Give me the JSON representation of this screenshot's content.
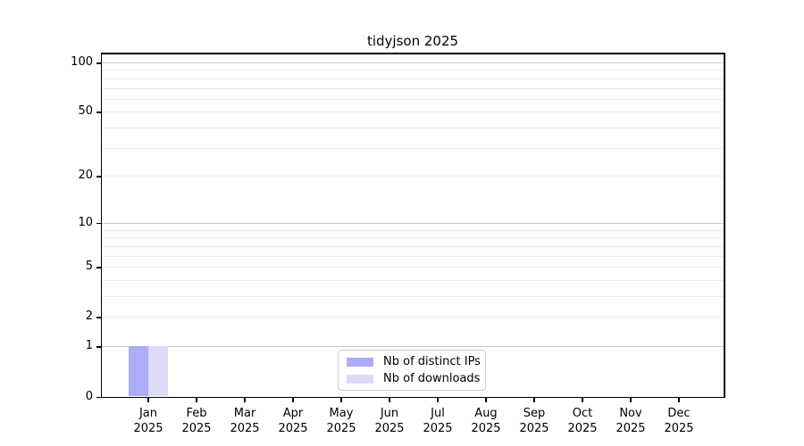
{
  "title": "tidyjson 2025",
  "legend": {
    "items": [
      {
        "label": "Nb of distinct IPs",
        "color": "#acacf7"
      },
      {
        "label": "Nb of downloads",
        "color": "#dcdcf6"
      }
    ],
    "position": "lower center"
  },
  "chart_data": {
    "type": "bar",
    "title": "tidyjson 2025",
    "categories": [
      "Jan",
      "Feb",
      "Mar",
      "Apr",
      "May",
      "Jun",
      "Jul",
      "Aug",
      "Sep",
      "Oct",
      "Nov",
      "Dec"
    ],
    "category_year": "2025",
    "series": [
      {
        "name": "Nb of distinct IPs",
        "color": "#acacf7",
        "values": [
          1,
          0,
          0,
          0,
          0,
          0,
          0,
          0,
          0,
          0,
          0,
          0
        ]
      },
      {
        "name": "Nb of downloads",
        "color": "#dcdcf6",
        "values": [
          1,
          0,
          0,
          0,
          0,
          0,
          0,
          0,
          0,
          0,
          0,
          0
        ]
      }
    ],
    "xlabel": "",
    "ylabel": "",
    "yscale": "log1p",
    "ylim": [
      0,
      112
    ],
    "yticks": [
      0,
      1,
      2,
      5,
      10,
      20,
      50,
      100
    ],
    "minor_gridlines": [
      2,
      3,
      4,
      5,
      6,
      7,
      8,
      9,
      20,
      30,
      40,
      50,
      60,
      70,
      80,
      90
    ],
    "major_gridlines": [
      1,
      10,
      100
    ],
    "grid": "horizontal",
    "legend_position": "lower center"
  },
  "colors": {
    "minor_grid": "#ececec",
    "major_grid": "#c8c8c8",
    "spine": "#000000",
    "background": "#ffffff"
  }
}
